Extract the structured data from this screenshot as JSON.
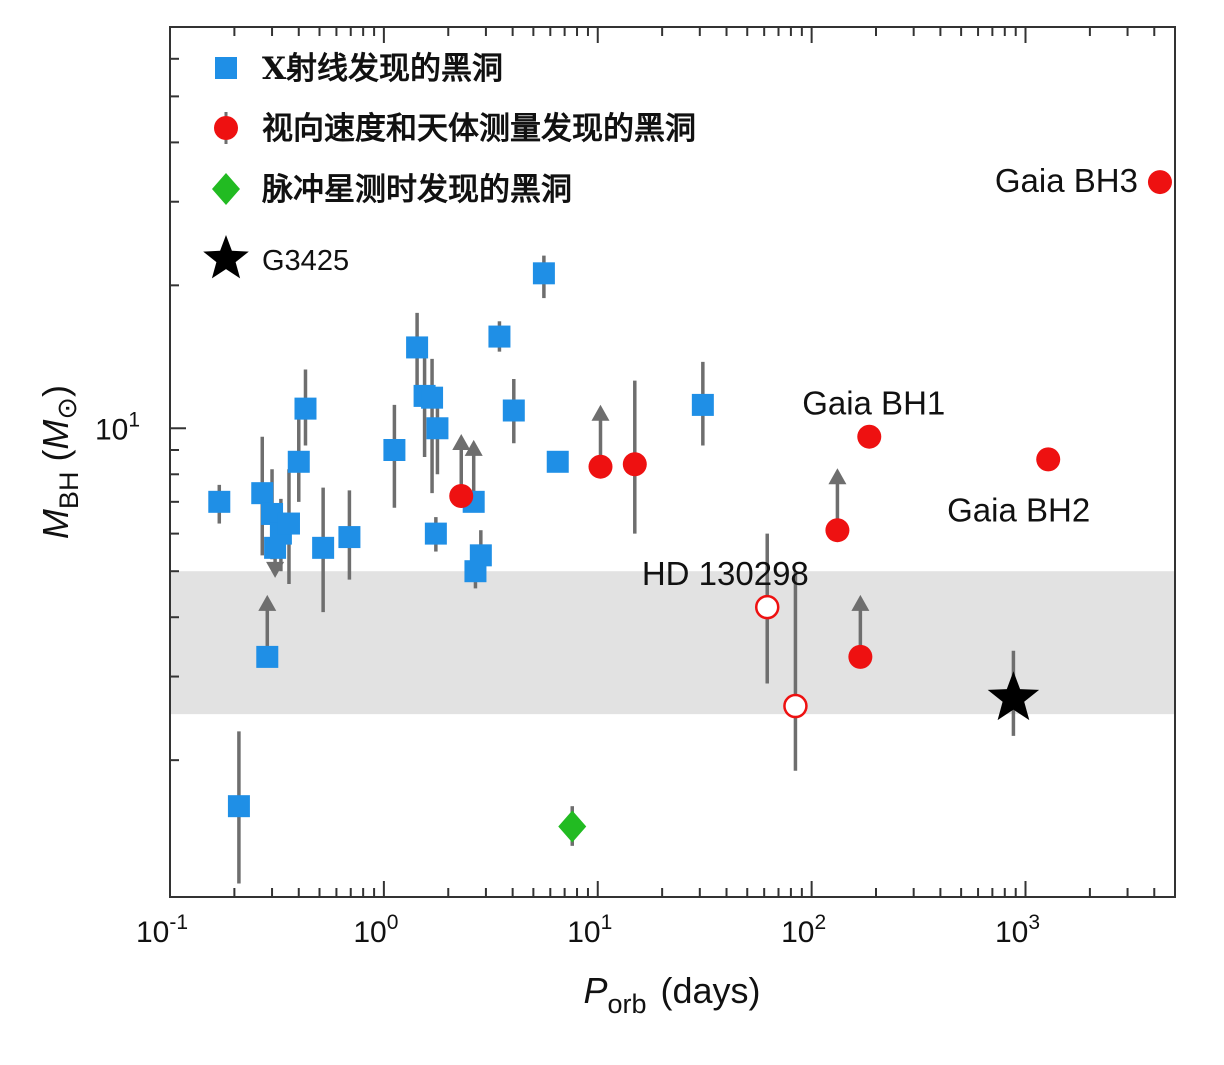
{
  "chart_data": {
    "type": "scatter",
    "xlabel": "P_orb (days)",
    "ylabel": "M_BH (M_sun)",
    "x_scale": "log",
    "y_scale": "log",
    "xlim": [
      0.1,
      5000
    ],
    "ylim": [
      1.03,
      70
    ],
    "x_tick_labels": [
      "10-1",
      "100",
      "101",
      "102",
      "103"
    ],
    "y_tick_labels": [
      "101"
    ],
    "grid": false,
    "legend_position": "top-left",
    "shaded_band": {
      "y_from": 2.5,
      "y_to": 5
    },
    "legend": [
      {
        "label": "X射线发现的黑洞",
        "marker": "square",
        "color": "#1f8fe6"
      },
      {
        "label": "视向速度和天体测量发现的黑洞",
        "marker": "circle",
        "color": "#ee1111"
      },
      {
        "label": "脉冲星测时发现的黑洞",
        "marker": "diamond",
        "color": "#22bb22"
      },
      {
        "label": "G3425",
        "marker": "star",
        "color": "#000000"
      }
    ],
    "series": [
      {
        "name": "X射线发现的黑洞",
        "marker": "square",
        "points": [
          {
            "x": 0.17,
            "y": 7.0,
            "lo": 6.3,
            "hi": 7.6
          },
          {
            "x": 0.21,
            "y": 1.6,
            "lo": 1.1,
            "hi": 2.3
          },
          {
            "x": 0.27,
            "y": 7.3,
            "lo": 5.4,
            "hi": 9.6
          },
          {
            "x": 0.285,
            "y": 3.3,
            "lo_arrow": true
          },
          {
            "x": 0.3,
            "y": 6.6,
            "lo": 5.3,
            "hi": 8.2
          },
          {
            "x": 0.31,
            "y": 5.6,
            "hi_arrow": true
          },
          {
            "x": 0.33,
            "y": 6.0,
            "lo": 5.0,
            "hi": 7.1
          },
          {
            "x": 0.36,
            "y": 6.3,
            "lo": 4.7,
            "hi": 8.2
          },
          {
            "x": 0.4,
            "y": 8.5,
            "lo": 7.0,
            "hi": 10.5
          },
          {
            "x": 0.43,
            "y": 11.0,
            "lo": 9.2,
            "hi": 13.3
          },
          {
            "x": 0.52,
            "y": 5.6,
            "lo": 4.1,
            "hi": 7.5
          },
          {
            "x": 0.69,
            "y": 5.9,
            "lo": 4.8,
            "hi": 7.4
          },
          {
            "x": 1.12,
            "y": 9.0,
            "lo": 6.8,
            "hi": 11.2
          },
          {
            "x": 1.43,
            "y": 14.8,
            "lo": 12.0,
            "hi": 17.5
          },
          {
            "x": 1.55,
            "y": 11.7,
            "lo": 8.7,
            "hi": 15.5
          },
          {
            "x": 1.68,
            "y": 11.6,
            "lo": 7.3,
            "hi": 14.0
          },
          {
            "x": 1.78,
            "y": 10.0,
            "lo": 8.0,
            "hi": 12.1
          },
          {
            "x": 1.75,
            "y": 6.0,
            "lo": 5.5,
            "hi": 6.5
          },
          {
            "x": 2.63,
            "y": 7.0,
            "lo_arrow": true
          },
          {
            "x": 2.68,
            "y": 5.0,
            "lo": 4.6,
            "hi": 5.5
          },
          {
            "x": 2.84,
            "y": 5.4,
            "lo": 4.9,
            "hi": 6.1
          },
          {
            "x": 3.47,
            "y": 15.6,
            "lo": 14.5,
            "hi": 16.8
          },
          {
            "x": 4.05,
            "y": 10.9,
            "lo": 9.3,
            "hi": 12.7
          },
          {
            "x": 5.6,
            "y": 21.2,
            "lo": 18.8,
            "hi": 23.1
          },
          {
            "x": 6.5,
            "y": 8.5,
            "lo": 8.3,
            "hi": 8.7
          },
          {
            "x": 31.0,
            "y": 11.2,
            "lo": 9.2,
            "hi": 13.8
          }
        ]
      },
      {
        "name": "视向速度和天体测量发现的黑洞",
        "marker": "circle",
        "points": [
          {
            "x": 2.3,
            "y": 7.2,
            "lo_arrow": true
          },
          {
            "x": 10.3,
            "y": 8.3,
            "lo_arrow": true
          },
          {
            "x": 14.9,
            "y": 8.4,
            "lo": 6.0,
            "hi": 12.6
          },
          {
            "x": 62.0,
            "y": 4.2,
            "lo": 2.9,
            "hi": 6.0,
            "open": true
          },
          {
            "x": 84.0,
            "y": 2.6,
            "lo": 1.9,
            "hi": 5.0,
            "open": true
          },
          {
            "x": 132.0,
            "y": 6.1,
            "lo_arrow": true
          },
          {
            "x": 169.0,
            "y": 3.3,
            "lo_arrow": true
          },
          {
            "x": 186.0,
            "y": 9.6
          },
          {
            "x": 1277.0,
            "y": 8.6
          },
          {
            "x": 4253.0,
            "y": 33.0
          }
        ]
      },
      {
        "name": "脉冲星测时发现的黑洞",
        "marker": "diamond",
        "points": [
          {
            "x": 7.6,
            "y": 1.45,
            "lo": 1.32,
            "hi": 1.6
          }
        ]
      },
      {
        "name": "G3425",
        "marker": "star",
        "points": [
          {
            "x": 878.0,
            "y": 2.7,
            "lo": 2.25,
            "hi": 3.4
          }
        ]
      }
    ],
    "annotations": [
      {
        "text": "Gaia BH3",
        "x": 4253.0,
        "y": 33.0
      },
      {
        "text": "Gaia BH1",
        "x": 186.0,
        "y": 9.6
      },
      {
        "text": "Gaia BH2",
        "x": 1277.0,
        "y": 8.6
      },
      {
        "text": "HD 130298",
        "x": 14.9,
        "y": 6.1
      }
    ],
    "colors": {
      "xray": "#1f8fe6",
      "rv": "#ee1111",
      "pulsar": "#22bb22",
      "star": "#000000",
      "errorbar": "#6e6e6e",
      "band": "#e2e2e2"
    }
  }
}
